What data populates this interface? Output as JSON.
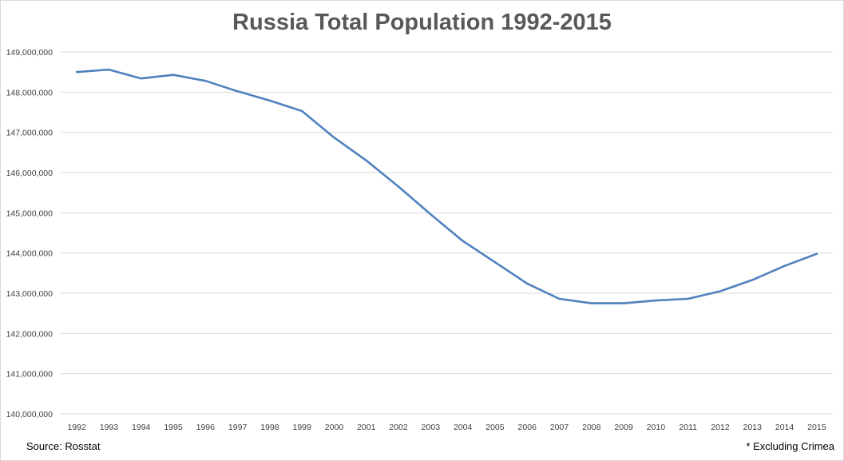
{
  "chart_data": {
    "type": "line",
    "title": "Russia Total Population 1992-2015",
    "xlabel": "",
    "ylabel": "",
    "categories": [
      "1992",
      "1993",
      "1994",
      "1995",
      "1996",
      "1997",
      "1998",
      "1999",
      "2000",
      "2001",
      "2002",
      "2003",
      "2004",
      "2005",
      "2006",
      "2007",
      "2008",
      "2009",
      "2010",
      "2011",
      "2012",
      "2013",
      "2014",
      "2015"
    ],
    "series": [
      {
        "values": [
          148500000,
          148560000,
          148340000,
          148430000,
          148280000,
          148020000,
          147790000,
          147530000,
          146870000,
          146300000,
          145650000,
          144960000,
          144300000,
          143770000,
          143240000,
          142860000,
          142750000,
          142750000,
          142820000,
          142860000,
          143050000,
          143330000,
          143680000,
          143980000
        ]
      }
    ],
    "ylim": [
      140000000,
      149000000
    ],
    "yticks": [
      140000000,
      141000000,
      142000000,
      143000000,
      144000000,
      145000000,
      146000000,
      147000000,
      148000000,
      149000000
    ],
    "ytick_labels": [
      "140,000,000",
      "141,000,000",
      "142,000,000",
      "143,000,000",
      "144,000,000",
      "145,000,000",
      "146,000,000",
      "147,000,000",
      "148,000,000",
      "149,000,000"
    ],
    "grid": true,
    "legend": "none",
    "line_color": "#4f81bd",
    "grid_color": "#d9d9d9"
  },
  "notes": {
    "source": "Source: Rosstat",
    "footnote": "* Excluding Crimea"
  }
}
